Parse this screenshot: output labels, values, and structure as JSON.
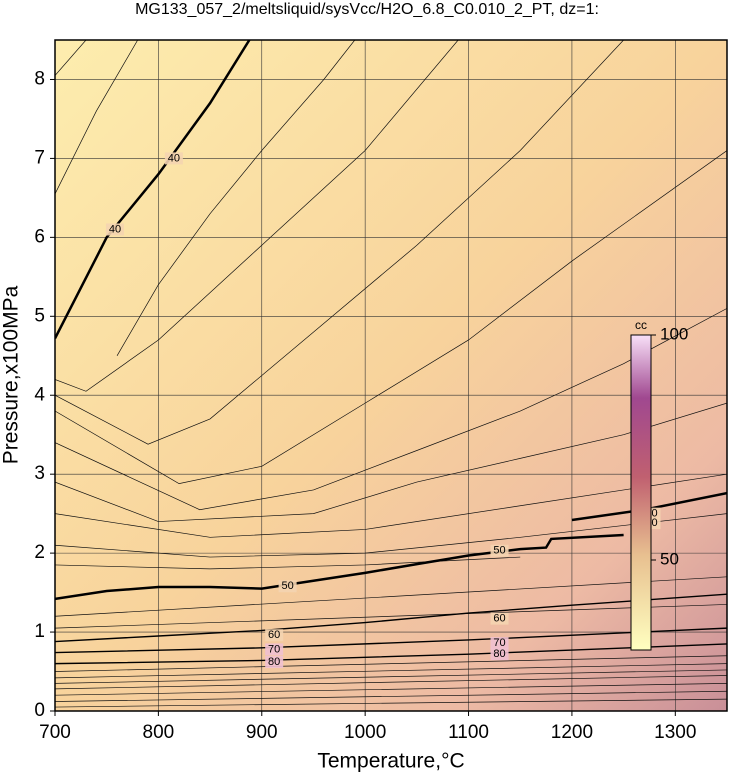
{
  "chart_data": {
    "type": "contour",
    "title": "MG133_057_2/meltsliquid/sysVcc/H2O_6.8_C0.010_2_PT, dz=1:",
    "x_label": "Temperature,°C",
    "y_label": "Pressure,x100MPa",
    "xlim": [
      700,
      1350
    ],
    "xticks": [
      700,
      800,
      900,
      1000,
      1100,
      1200,
      1300
    ],
    "ylim": [
      0,
      8.5
    ],
    "yticks": [
      0,
      1,
      2,
      3,
      4,
      5,
      6,
      7,
      8
    ],
    "grid": true,
    "colorbar": {
      "title": "cc",
      "lim": [
        30,
        100
      ],
      "ticks": [
        50,
        100
      ]
    },
    "labeled_contours": [
      {
        "level": 40,
        "x": [
          700,
          750,
          800,
          850,
          888
        ],
        "y": [
          4.72,
          6.0,
          6.8,
          7.7,
          8.5
        ],
        "label_x": [
          815,
          758
        ],
        "label_y": [
          7.0,
          6.1
        ]
      },
      {
        "level": 50,
        "x": [
          700,
          750,
          800,
          850,
          900,
          950,
          1000,
          1050,
          1100,
          1150,
          1175,
          1180,
          1250
        ],
        "y": [
          1.42,
          1.52,
          1.57,
          1.57,
          1.55,
          1.65,
          1.75,
          1.86,
          1.97,
          2.05,
          2.07,
          2.18,
          2.23
        ],
        "label_x": [
          925,
          1130
        ],
        "label_y": [
          1.58,
          2.03
        ]
      },
      {
        "level": 50,
        "x": [
          1200,
          1270,
          1350
        ],
        "y": [
          2.42,
          2.55,
          2.76
        ],
        "label_x": [
          1277,
          1277
        ],
        "label_y": [
          2.5,
          2.38
        ]
      },
      {
        "level": 60,
        "x": [
          700,
          800,
          900,
          1000,
          1100,
          1200,
          1350
        ],
        "y": [
          0.88,
          0.95,
          1.02,
          1.12,
          1.24,
          1.34,
          1.48
        ],
        "label_x": [
          912,
          1130
        ],
        "label_y": [
          0.96,
          1.17
        ]
      },
      {
        "level": 70,
        "x": [
          700,
          900,
          1100,
          1350
        ],
        "y": [
          0.74,
          0.8,
          0.9,
          1.05
        ],
        "label_x": [
          912,
          1130
        ],
        "label_y": [
          0.78,
          0.86
        ]
      },
      {
        "level": 80,
        "x": [
          700,
          900,
          1100,
          1350
        ],
        "y": [
          0.6,
          0.64,
          0.72,
          0.85
        ],
        "label_x": [
          912,
          1130
        ],
        "label_y": [
          0.62,
          0.72
        ]
      }
    ],
    "contours": [
      {
        "x": [
          700,
          730
        ],
        "y": [
          8.05,
          8.5
        ]
      },
      {
        "x": [
          700,
          740,
          780
        ],
        "y": [
          6.55,
          7.6,
          8.5
        ]
      },
      {
        "x": [
          760,
          800,
          850,
          900,
          960,
          990
        ],
        "y": [
          4.5,
          5.4,
          6.3,
          7.1,
          8.0,
          8.5
        ]
      },
      {
        "x": [
          700,
          730,
          800,
          900,
          1000,
          1090
        ],
        "y": [
          4.2,
          4.05,
          4.7,
          5.9,
          7.1,
          8.5
        ]
      },
      {
        "x": [
          700,
          790,
          850,
          950,
          1050,
          1150,
          1250
        ],
        "y": [
          4.0,
          3.38,
          3.7,
          4.8,
          5.9,
          7.1,
          8.5
        ]
      },
      {
        "x": [
          700,
          820,
          900,
          1000,
          1100,
          1200,
          1350
        ],
        "y": [
          3.8,
          2.88,
          3.1,
          3.9,
          4.7,
          5.7,
          7.1
        ]
      },
      {
        "x": [
          700,
          840,
          950,
          1050,
          1150,
          1250,
          1350
        ],
        "y": [
          3.4,
          2.55,
          2.8,
          3.3,
          3.8,
          4.4,
          5.1
        ]
      },
      {
        "x": [
          700,
          800,
          950,
          1050,
          1150,
          1250,
          1350
        ],
        "y": [
          2.9,
          2.4,
          2.5,
          2.9,
          3.2,
          3.5,
          3.9
        ]
      },
      {
        "x": [
          700,
          850,
          1000,
          1150,
          1350
        ],
        "y": [
          2.5,
          2.2,
          2.3,
          2.6,
          3.0
        ]
      },
      {
        "x": [
          700,
          850,
          1000,
          1150,
          1350
        ],
        "y": [
          2.1,
          1.95,
          2.0,
          2.2,
          2.5
        ]
      },
      {
        "x": [
          700,
          850,
          1000,
          1150
        ],
        "y": [
          1.85,
          1.8,
          1.85,
          1.95
        ]
      },
      {
        "x": [
          700,
          1350
        ],
        "y": [
          1.2,
          1.7
        ]
      },
      {
        "x": [
          700,
          1350
        ],
        "y": [
          1.05,
          1.35
        ]
      },
      {
        "x": [
          700,
          1350
        ],
        "y": [
          0.5,
          0.7
        ]
      },
      {
        "x": [
          700,
          1350
        ],
        "y": [
          0.42,
          0.6
        ]
      },
      {
        "x": [
          700,
          1350
        ],
        "y": [
          0.35,
          0.52
        ]
      },
      {
        "x": [
          700,
          1350
        ],
        "y": [
          0.28,
          0.45
        ]
      },
      {
        "x": [
          700,
          1350
        ],
        "y": [
          0.2,
          0.35
        ]
      },
      {
        "x": [
          700,
          1350
        ],
        "y": [
          0.12,
          0.25
        ]
      },
      {
        "x": [
          700,
          1350
        ],
        "y": [
          0.05,
          0.15
        ]
      }
    ]
  }
}
